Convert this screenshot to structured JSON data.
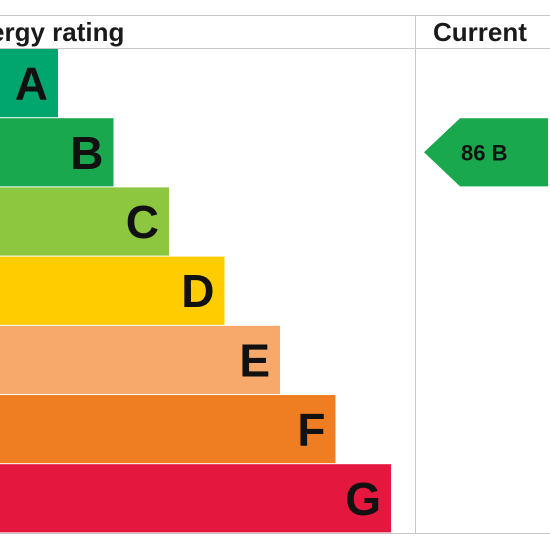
{
  "header": {
    "rating_title": "ergy rating",
    "current_title": "Current"
  },
  "chart_data": {
    "type": "bar",
    "title": "ergy rating",
    "categories": [
      "A",
      "B",
      "C",
      "D",
      "E",
      "F",
      "G"
    ],
    "band_colors": [
      "#00a66e",
      "#1aa84f",
      "#8dc63f",
      "#ffcc00",
      "#f6a96b",
      "#ef7d22",
      "#e4173e"
    ],
    "relative_widths": [
      1,
      2,
      3,
      4,
      5,
      6,
      7
    ],
    "current": {
      "label": "Current",
      "value": 86,
      "band": "B",
      "text": "86  B",
      "color": "#1aa84f"
    }
  }
}
